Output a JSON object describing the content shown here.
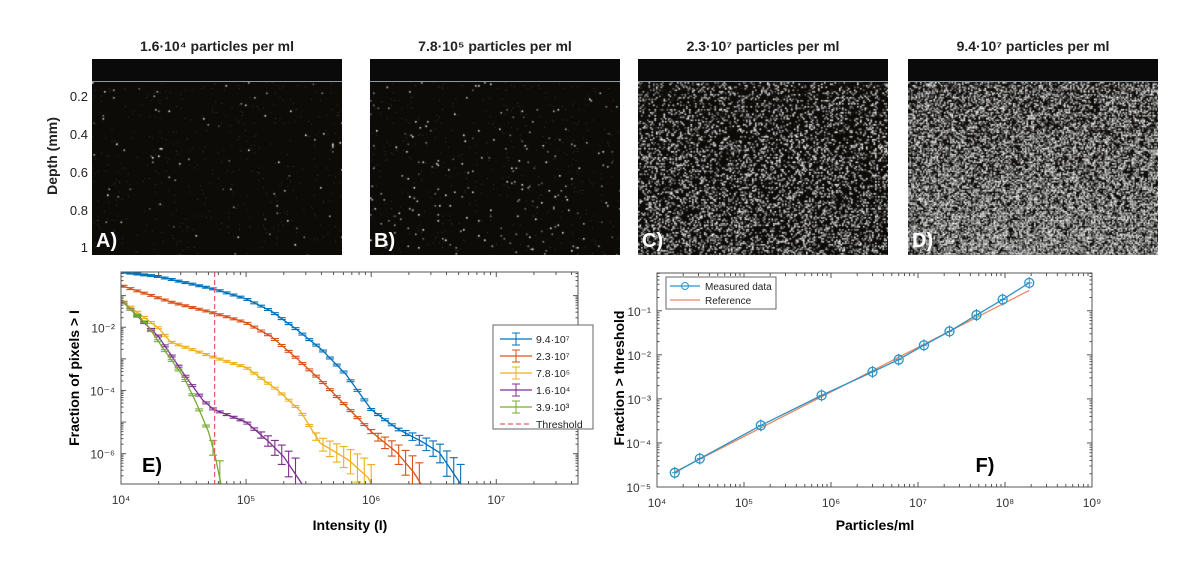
{
  "figure": {
    "depth_label": "Depth (mm)",
    "depth_ticks": [
      "0.2",
      "0.4",
      "0.6",
      "0.8",
      "1"
    ]
  },
  "panels": [
    {
      "label": "A)",
      "title": "1.6·10⁴ particles per ml"
    },
    {
      "label": "B)",
      "title": "7.8·10⁵ particles per ml"
    },
    {
      "label": "C)",
      "title": "2.3·10⁷ particles per ml"
    },
    {
      "label": "D)",
      "title": "9.4·10⁷ particles per ml"
    }
  ],
  "chart_data": [
    {
      "type": "line",
      "panel_label": "E)",
      "xlabel": "Intensity (I)",
      "ylabel": "Fraction of pixels > I",
      "xscale": "log",
      "yscale": "log",
      "xlim": [
        10000,
        45000000
      ],
      "ylim": [
        1.1e-07,
        0.56
      ],
      "xticks": [
        {
          "value": 10000,
          "label": "10⁴"
        },
        {
          "value": 100000,
          "label": "10⁵"
        },
        {
          "value": 1000000,
          "label": "10⁶"
        },
        {
          "value": 10000000,
          "label": "10⁷"
        }
      ],
      "yticks": [
        {
          "value": 0.01,
          "label": "10⁻²"
        },
        {
          "value": 0.0001,
          "label": "10⁻⁴"
        },
        {
          "value": 1e-06,
          "label": "10⁻⁶"
        }
      ],
      "legend_position": "right",
      "error_bars": true,
      "series": [
        {
          "name": "9.4·10⁷",
          "color": "#0072bd",
          "x": [
            10000,
            20000,
            56000,
            100000,
            160000,
            250000,
            400000,
            630000,
            1000000,
            1600000,
            2500000,
            3500000,
            5200000
          ],
          "y": [
            0.56,
            0.4,
            0.16,
            0.079,
            0.032,
            0.0089,
            0.002,
            0.00032,
            2.5e-05,
            6.3e-06,
            2.5e-06,
            1.1e-06,
            1.1e-07
          ]
        },
        {
          "name": "2.3·10⁷",
          "color": "#d95319",
          "x": [
            10000,
            25000,
            56000,
            100000,
            160000,
            250000,
            400000,
            630000,
            1000000,
            1600000,
            2200000,
            2500000
          ],
          "y": [
            0.21,
            0.063,
            0.028,
            0.014,
            0.005,
            0.0011,
            0.0002,
            3.2e-05,
            5e-06,
            1.1e-06,
            2.5e-07,
            1.1e-07
          ]
        },
        {
          "name": "7.8·10⁵",
          "color": "#edb120",
          "x": [
            10000,
            20000,
            25000,
            56000,
            100000,
            180000,
            270000,
            390000,
            660000,
            950000,
            1000000
          ],
          "y": [
            0.072,
            0.0093,
            0.0034,
            0.0011,
            0.00054,
            0.0001,
            2.3e-05,
            2.2e-06,
            6.3e-07,
            1.7e-07,
            1.1e-07
          ]
        },
        {
          "name": "1.6·10⁴",
          "color": "#7e2f8e",
          "x": [
            10000,
            20000,
            32000,
            45000,
            55000,
            100000,
            150000,
            200000,
            280000
          ],
          "y": [
            0.072,
            0.005,
            0.00032,
            5e-05,
            2.5e-05,
            1e-05,
            2.5e-06,
            8e-07,
            1.1e-07
          ]
        },
        {
          "name": "3.9·10³",
          "color": "#77ac30",
          "x": [
            10000,
            16000,
            22000,
            32000,
            40000,
            50000,
            56000,
            63000
          ],
          "y": [
            0.072,
            0.0126,
            0.002,
            0.00025,
            4e-05,
            5e-06,
            1e-06,
            1.1e-07
          ]
        }
      ],
      "threshold": {
        "name": "Threshold",
        "value": 56000,
        "color": "#e06070"
      }
    },
    {
      "type": "line",
      "panel_label": "F)",
      "xlabel": "Particles/ml",
      "ylabel": "Fraction > threshold",
      "xscale": "log",
      "yscale": "log",
      "xlim": [
        10000,
        1000000000
      ],
      "ylim": [
        1e-05,
        0.72
      ],
      "xticks": [
        {
          "value": 10000,
          "label": "10⁴"
        },
        {
          "value": 100000,
          "label": "10⁵"
        },
        {
          "value": 1000000,
          "label": "10⁶"
        },
        {
          "value": 10000000,
          "label": "10⁷"
        },
        {
          "value": 100000000,
          "label": "10⁸"
        },
        {
          "value": 1000000000,
          "label": "10⁹"
        }
      ],
      "yticks": [
        {
          "value": 1e-05,
          "label": "10⁻⁵"
        },
        {
          "value": 0.0001,
          "label": "10⁻⁴"
        },
        {
          "value": 0.001,
          "label": "10⁻³"
        },
        {
          "value": 0.01,
          "label": "10⁻²"
        },
        {
          "value": 0.1,
          "label": "10⁻¹"
        }
      ],
      "legend_position": "top-left",
      "series": [
        {
          "name": "Measured data",
          "color": "#2b93c4",
          "marker": "circle",
          "error_bars": true,
          "x": [
            16000,
            31000,
            156000,
            780000,
            3000000,
            6000000,
            11700000,
            23000000,
            47000000,
            94000000,
            190000000
          ],
          "y": [
            2.1e-05,
            4.4e-05,
            0.00025,
            0.0012,
            0.0041,
            0.0078,
            0.0165,
            0.034,
            0.08,
            0.18,
            0.43
          ]
        },
        {
          "name": "Reference",
          "color": "#e8896a",
          "x": [
            16000,
            190000000
          ],
          "y": [
            2.2e-05,
            0.29
          ]
        }
      ]
    }
  ]
}
